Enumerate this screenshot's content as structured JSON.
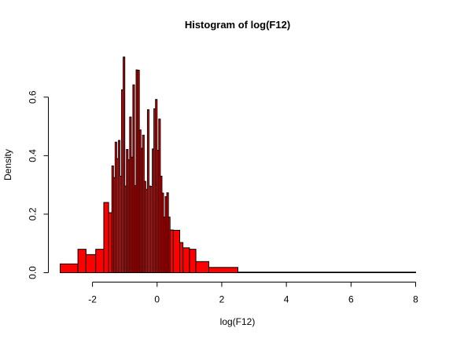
{
  "chart_data": {
    "type": "bar",
    "title": "Histogram of log(F12)",
    "xlabel": "log(F12)",
    "ylabel": "Density",
    "xlim": [
      -3.0,
      8.0
    ],
    "ylim": [
      0,
      0.7
    ],
    "x_ticks": [
      -2,
      0,
      2,
      4,
      6,
      8
    ],
    "x_tick_labels": [
      "-2",
      "0",
      "2",
      "4",
      "6",
      "8"
    ],
    "y_ticks": [
      0.0,
      0.2,
      0.4,
      0.6
    ],
    "y_tick_labels": [
      "0.0",
      "0.2",
      "0.4",
      "0.6"
    ],
    "grid": false,
    "fill_color": "#ff0000",
    "border_color": "#000000",
    "bins": [
      {
        "x0": -3.0,
        "x1": -2.45,
        "density": 0.03
      },
      {
        "x0": -2.45,
        "x1": -2.2,
        "density": 0.08
      },
      {
        "x0": -2.2,
        "x1": -1.9,
        "density": 0.062
      },
      {
        "x0": -1.9,
        "x1": -1.65,
        "density": 0.08
      },
      {
        "x0": -1.65,
        "x1": -1.5,
        "density": 0.24
      },
      {
        "x0": -1.5,
        "x1": -1.4,
        "density": 0.205
      },
      {
        "x0": -1.4,
        "x1": -1.35,
        "density": 0.365
      },
      {
        "x0": -1.35,
        "x1": -1.3,
        "density": 0.325
      },
      {
        "x0": -1.3,
        "x1": -1.25,
        "density": 0.446
      },
      {
        "x0": -1.25,
        "x1": -1.2,
        "density": 0.39
      },
      {
        "x0": -1.2,
        "x1": -1.15,
        "density": 0.452
      },
      {
        "x0": -1.15,
        "x1": -1.1,
        "density": 0.33
      },
      {
        "x0": -1.1,
        "x1": -1.05,
        "density": 0.625
      },
      {
        "x0": -1.05,
        "x1": -1.0,
        "density": 0.737
      },
      {
        "x0": -1.0,
        "x1": -0.95,
        "density": 0.296
      },
      {
        "x0": -0.95,
        "x1": -0.9,
        "density": 0.421
      },
      {
        "x0": -0.9,
        "x1": -0.85,
        "density": 0.386
      },
      {
        "x0": -0.85,
        "x1": -0.8,
        "density": 0.532
      },
      {
        "x0": -0.8,
        "x1": -0.75,
        "density": 0.395
      },
      {
        "x0": -0.75,
        "x1": -0.7,
        "density": 0.642
      },
      {
        "x0": -0.7,
        "x1": -0.65,
        "density": 0.298
      },
      {
        "x0": -0.65,
        "x1": -0.6,
        "density": 0.693
      },
      {
        "x0": -0.6,
        "x1": -0.55,
        "density": 0.692
      },
      {
        "x0": -0.55,
        "x1": -0.5,
        "density": 0.488
      },
      {
        "x0": -0.5,
        "x1": -0.45,
        "density": 0.425
      },
      {
        "x0": -0.45,
        "x1": -0.4,
        "density": 0.47
      },
      {
        "x0": -0.4,
        "x1": -0.35,
        "density": 0.312
      },
      {
        "x0": -0.35,
        "x1": -0.3,
        "density": 0.285
      },
      {
        "x0": -0.3,
        "x1": -0.25,
        "density": 0.557
      },
      {
        "x0": -0.25,
        "x1": -0.2,
        "density": 0.296
      },
      {
        "x0": -0.2,
        "x1": -0.15,
        "density": 0.295
      },
      {
        "x0": -0.15,
        "x1": -0.1,
        "density": 0.423
      },
      {
        "x0": -0.1,
        "x1": -0.05,
        "density": 0.56
      },
      {
        "x0": -0.05,
        "x1": 0.0,
        "density": 0.592
      },
      {
        "x0": 0.0,
        "x1": 0.05,
        "density": 0.418
      },
      {
        "x0": 0.05,
        "x1": 0.1,
        "density": 0.525
      },
      {
        "x0": 0.1,
        "x1": 0.15,
        "density": 0.33
      },
      {
        "x0": 0.15,
        "x1": 0.2,
        "density": 0.272
      },
      {
        "x0": 0.2,
        "x1": 0.25,
        "density": 0.19
      },
      {
        "x0": 0.25,
        "x1": 0.3,
        "density": 0.26
      },
      {
        "x0": 0.3,
        "x1": 0.35,
        "density": 0.273
      },
      {
        "x0": 0.35,
        "x1": 0.4,
        "density": 0.19
      },
      {
        "x0": 0.4,
        "x1": 0.5,
        "density": 0.146
      },
      {
        "x0": 0.5,
        "x1": 0.7,
        "density": 0.145
      },
      {
        "x0": 0.7,
        "x1": 0.8,
        "density": 0.103
      },
      {
        "x0": 0.8,
        "x1": 1.0,
        "density": 0.085
      },
      {
        "x0": 1.0,
        "x1": 1.2,
        "density": 0.08
      },
      {
        "x0": 1.2,
        "x1": 1.6,
        "density": 0.038
      },
      {
        "x0": 1.6,
        "x1": 2.5,
        "density": 0.018
      },
      {
        "x0": 2.5,
        "x1": 8.0,
        "density": 0.002
      }
    ]
  }
}
